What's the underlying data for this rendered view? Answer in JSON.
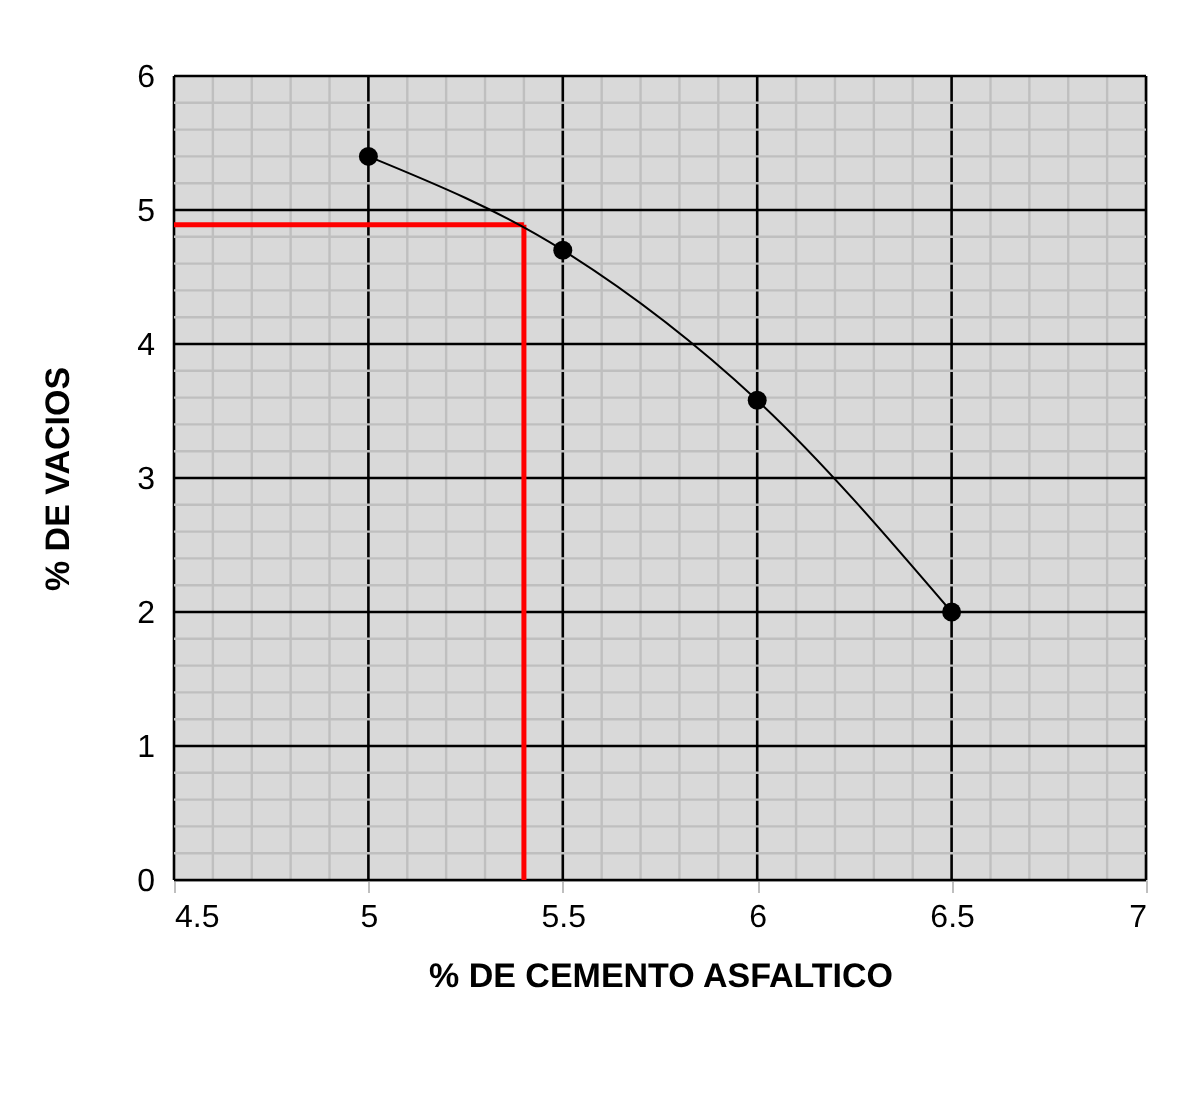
{
  "chart_data": {
    "type": "line",
    "xlabel": "% DE CEMENTO ASFALTICO",
    "ylabel": "% DE VACIOS",
    "x": [
      5,
      5.5,
      6,
      6.5
    ],
    "series": [
      {
        "color": "#000000",
        "values": [
          5.4,
          4.7,
          3.58,
          2.0
        ]
      }
    ],
    "xlim": [
      4.5,
      7
    ],
    "xticks": [
      4.5,
      5,
      5.5,
      6,
      6.5,
      7
    ],
    "ylim": [
      0,
      6
    ],
    "yticks": [
      0,
      1,
      2,
      3,
      4,
      5,
      6
    ],
    "grid": true,
    "marker": "circle",
    "line_style": "solid",
    "ref_lines": [
      {
        "axis": "x",
        "value": 5.4,
        "color": "#ff0000"
      },
      {
        "axis": "y",
        "value": 4.89,
        "color": "#ff0000"
      }
    ]
  }
}
